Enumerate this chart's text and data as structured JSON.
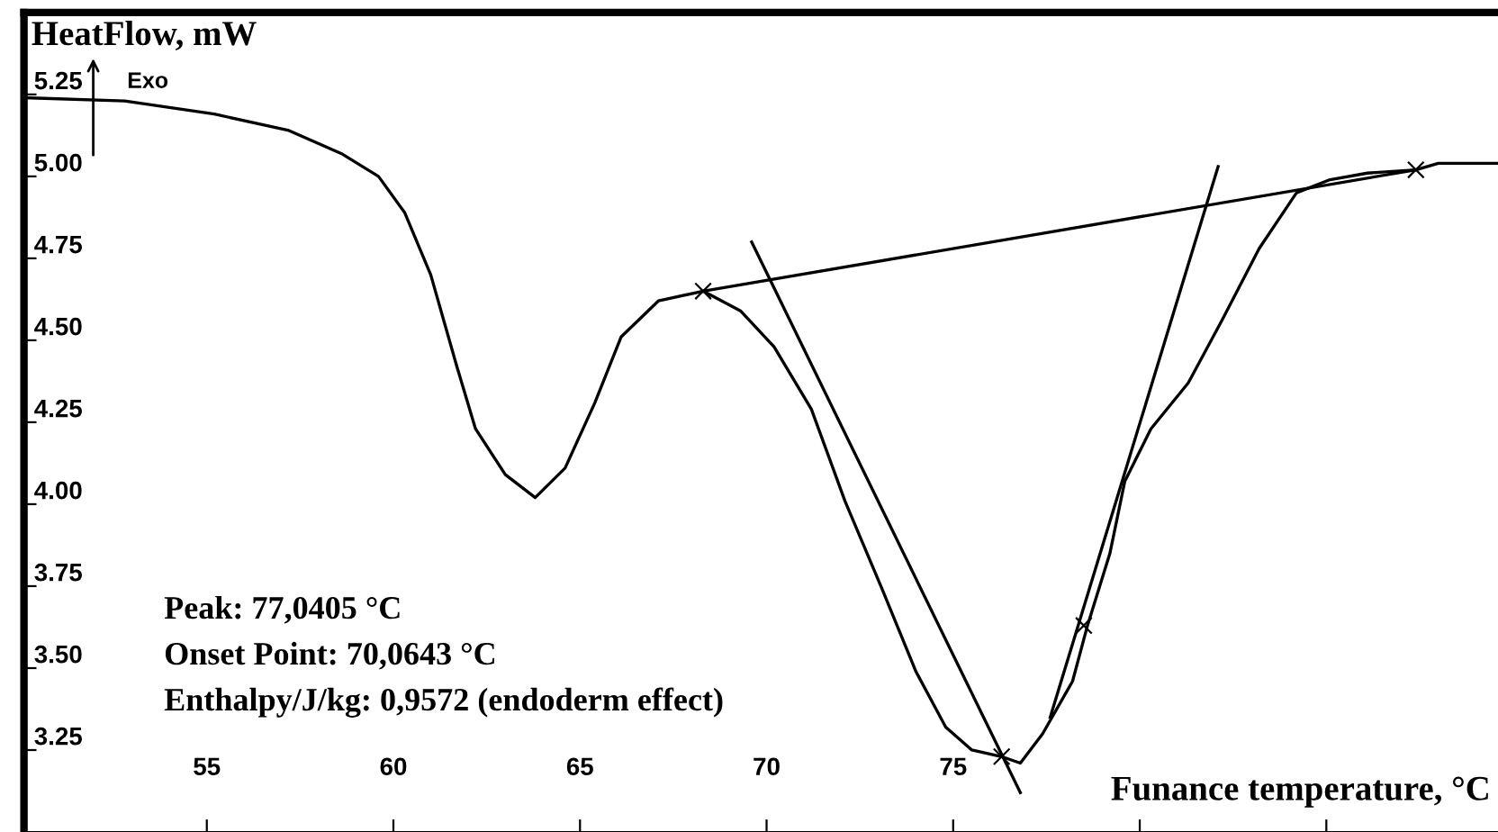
{
  "chart_data": {
    "type": "line",
    "ylabel": "HeatFlow, mW",
    "xlabel": "Funance temperature, °C",
    "annotations": [
      "Exo",
      "Peak: 77,0405 °C",
      "Onset Point: 70,0643 °C",
      "Enthalpy/J/kg: 0,9572 (endoderm effect)"
    ],
    "series": [
      {
        "color": "#000000",
        "x": [
          50.1,
          52.8,
          55.2,
          57.2,
          58.6,
          59.6,
          60.3,
          61.0,
          61.7,
          62.2,
          63.0,
          63.8,
          64.6,
          65.4,
          66.1,
          67.1,
          68.3,
          69.3,
          70.2,
          71.2,
          72.1,
          73.1,
          74.0,
          74.8,
          75.5,
          76.3,
          76.8,
          77.4,
          78.2,
          78.6,
          79.2,
          79.6,
          80.3,
          81.3,
          82.2,
          83.2,
          84.2,
          85.1,
          86.1,
          87.4,
          88.0,
          89.6
        ],
        "values": [
          5.24,
          5.23,
          5.19,
          5.14,
          5.07,
          5.0,
          4.89,
          4.7,
          4.42,
          4.23,
          4.09,
          4.02,
          4.11,
          4.31,
          4.51,
          4.62,
          4.65,
          4.59,
          4.48,
          4.29,
          4.01,
          3.74,
          3.49,
          3.32,
          3.25,
          3.23,
          3.21,
          3.3,
          3.46,
          3.63,
          3.85,
          4.07,
          4.23,
          4.37,
          4.56,
          4.78,
          4.95,
          4.99,
          5.01,
          5.02,
          5.04,
          5.04
        ]
      },
      {
        "color": "#000000",
        "x": [
          68.3,
          87.4
        ],
        "values": [
          4.65,
          5.02
        ]
      },
      {
        "color": "#000000",
        "x": [
          69.6,
          76.8
        ],
        "values": [
          4.8,
          3.12
        ]
      },
      {
        "color": "#000000",
        "x": [
          82.1,
          77.6
        ],
        "values": [
          5.03,
          3.35
        ]
      },
      {
        "type": "scatter",
        "color": "#000000",
        "marker": "cross",
        "x": [
          68.3,
          87.4,
          76.3,
          78.5
        ],
        "values": [
          4.65,
          5.02,
          3.23,
          3.63
        ]
      }
    ],
    "xlim": [
      50.1,
      89.6
    ],
    "ylim": [
      3.0,
      5.5
    ],
    "xticks": [
      55,
      60,
      65,
      70,
      75,
      {
        "value": 80,
        "label": null
      },
      {
        "value": 85,
        "label": null
      }
    ],
    "yticks": [
      {
        "value": 3.25,
        "label": "3.25"
      },
      {
        "value": 3.5,
        "label": "3.50"
      },
      {
        "value": 3.75,
        "label": "3.75"
      },
      {
        "value": 4.0,
        "label": "4.00"
      },
      {
        "value": 4.25,
        "label": "4.25"
      },
      {
        "value": 4.5,
        "label": "4.50"
      },
      {
        "value": 4.75,
        "label": "4.75"
      },
      {
        "value": 5.0,
        "label": "5.00"
      },
      {
        "value": 5.25,
        "label": "5.25"
      }
    ],
    "grid": false,
    "legend": false
  }
}
